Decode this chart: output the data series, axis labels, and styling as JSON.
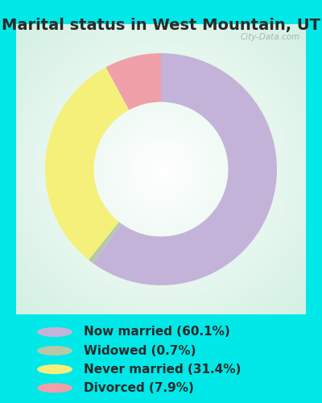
{
  "title": "Marital status in West Mountain, UT",
  "slices": [
    60.1,
    0.7,
    31.4,
    7.9
  ],
  "labels": [
    "Now married (60.1%)",
    "Widowed (0.7%)",
    "Never married (31.4%)",
    "Divorced (7.9%)"
  ],
  "colors": [
    "#c4b3d9",
    "#b5c9a8",
    "#f5f07a",
    "#f0a0a8"
  ],
  "background_cyan": "#00e8e8",
  "title_fontsize": 14,
  "legend_fontsize": 11,
  "watermark": "City-Data.com",
  "start_angle": 90,
  "donut_width": 0.42,
  "title_color": "#2a2a2a",
  "legend_text_color": "#2a2a2a"
}
